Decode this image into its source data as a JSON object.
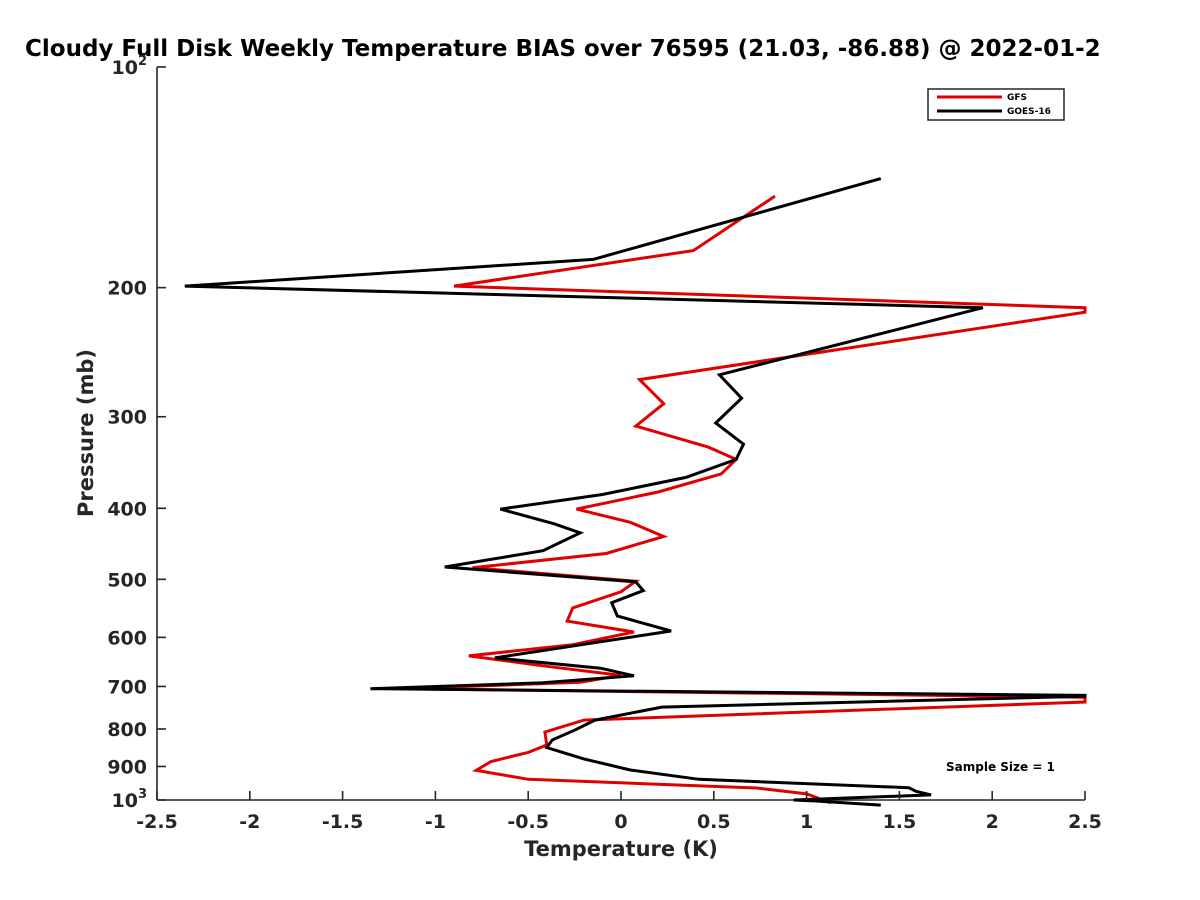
{
  "chart_data": {
    "type": "line",
    "title": "Cloudy Full Disk Weekly Temperature BIAS over 76595 (21.03, -86.88) @ 2022-01-2",
    "xlabel": "Temperature (K)",
    "ylabel": "Pressure (mb)",
    "xlim": [
      -2.5,
      2.5
    ],
    "ylim": [
      100,
      1000
    ],
    "y_scale": "log",
    "y_reversed": true,
    "x_ticks": [
      "-2.5",
      "-2",
      "-1.5",
      "-1",
      "-0.5",
      "0",
      "0.5",
      "1",
      "1.5",
      "2",
      "2.5"
    ],
    "y_ticks": [
      {
        "value": 100,
        "label": "10",
        "sup": "2"
      },
      {
        "value": 200,
        "label": "200",
        "sup": ""
      },
      {
        "value": 300,
        "label": "300",
        "sup": ""
      },
      {
        "value": 400,
        "label": "400",
        "sup": ""
      },
      {
        "value": 500,
        "label": "500",
        "sup": ""
      },
      {
        "value": 600,
        "label": "600",
        "sup": ""
      },
      {
        "value": 700,
        "label": "700",
        "sup": ""
      },
      {
        "value": 800,
        "label": "800",
        "sup": ""
      },
      {
        "value": 900,
        "label": "900",
        "sup": ""
      },
      {
        "value": 1000,
        "label": "10",
        "sup": "3"
      }
    ],
    "annotation": "Sample Size = 1",
    "legend_position": "top-right",
    "series": [
      {
        "name": "GFS",
        "color": "#e00000",
        "points": [
          [
            0.83,
            150
          ],
          [
            0.39,
            178
          ],
          [
            -0.9,
            199
          ],
          [
            2.5,
            213
          ],
          [
            2.5,
            216
          ],
          [
            0.1,
            267
          ],
          [
            0.23,
            288
          ],
          [
            0.08,
            309
          ],
          [
            0.47,
            330
          ],
          [
            0.62,
            343
          ],
          [
            0.54,
            359
          ],
          [
            0.2,
            380
          ],
          [
            -0.24,
            401
          ],
          [
            0.05,
            418
          ],
          [
            0.23,
            437
          ],
          [
            -0.08,
            461
          ],
          [
            -0.8,
            482
          ],
          [
            0.08,
            503
          ],
          [
            0.0,
            520
          ],
          [
            -0.26,
            547
          ],
          [
            -0.29,
            570
          ],
          [
            0.07,
            590
          ],
          [
            -0.26,
            614
          ],
          [
            -0.82,
            636
          ],
          [
            -0.4,
            657
          ],
          [
            0.0,
            676
          ],
          [
            -0.22,
            691
          ],
          [
            -1.18,
            705
          ],
          [
            2.5,
            724
          ],
          [
            2.5,
            735
          ],
          [
            -0.2,
            778
          ],
          [
            -0.41,
            808
          ],
          [
            -0.4,
            841
          ],
          [
            -0.5,
            861
          ],
          [
            -0.7,
            886
          ],
          [
            -0.78,
            911
          ],
          [
            -0.5,
            937
          ],
          [
            0.73,
            963
          ],
          [
            1.0,
            981
          ],
          [
            1.13,
            1009
          ]
        ]
      },
      {
        "name": "GOES-16",
        "color": "#000000",
        "points": [
          [
            1.4,
            142
          ],
          [
            -0.15,
            183
          ],
          [
            -2.35,
            199
          ],
          [
            1.95,
            213
          ],
          [
            0.53,
            263
          ],
          [
            0.65,
            283
          ],
          [
            0.51,
            306
          ],
          [
            0.66,
            327
          ],
          [
            0.62,
            343
          ],
          [
            0.35,
            363
          ],
          [
            -0.1,
            383
          ],
          [
            -0.65,
            401
          ],
          [
            -0.36,
            420
          ],
          [
            -0.22,
            432
          ],
          [
            -0.42,
            457
          ],
          [
            -0.95,
            481
          ],
          [
            0.08,
            504
          ],
          [
            0.12,
            518
          ],
          [
            -0.05,
            538
          ],
          [
            -0.02,
            561
          ],
          [
            0.27,
            588
          ],
          [
            -0.68,
            640
          ],
          [
            -0.11,
            661
          ],
          [
            0.07,
            677
          ],
          [
            -0.42,
            692
          ],
          [
            -1.35,
            705
          ],
          [
            2.5,
            720
          ],
          [
            2.5,
            722
          ],
          [
            0.22,
            747
          ],
          [
            -0.14,
            778
          ],
          [
            -0.25,
            803
          ],
          [
            -0.37,
            828
          ],
          [
            -0.4,
            848
          ],
          [
            -0.2,
            879
          ],
          [
            0.05,
            910
          ],
          [
            0.42,
            937
          ],
          [
            1.55,
            962
          ],
          [
            1.59,
            973
          ],
          [
            1.67,
            984
          ],
          [
            0.93,
            1000
          ],
          [
            1.05,
            1003
          ],
          [
            1.4,
            1016
          ]
        ]
      }
    ]
  }
}
